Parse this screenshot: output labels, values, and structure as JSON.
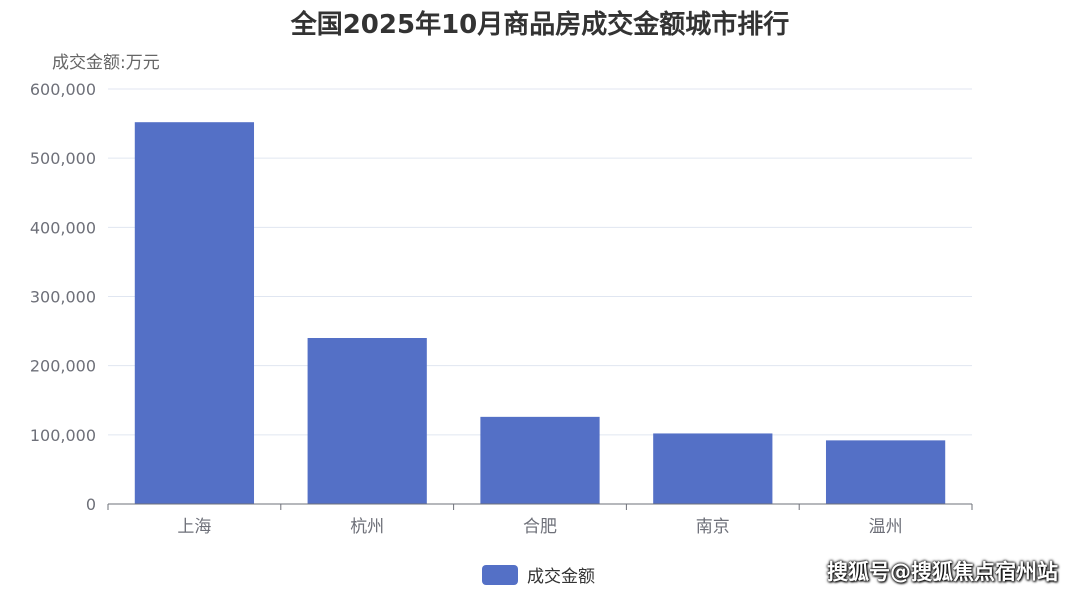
{
  "chart_data": {
    "type": "bar",
    "title": "全国2025年10月商品房成交金额城市排行",
    "unit_label": "成交金额:万元",
    "categories": [
      "上海",
      "杭州",
      "合肥",
      "南京",
      "温州"
    ],
    "series": [
      {
        "name": "成交金额",
        "values": [
          552000,
          240000,
          126000,
          102000,
          92000
        ],
        "color": "#5470c6"
      }
    ],
    "ylim": [
      0,
      600000
    ],
    "yticks": [
      "0",
      "100,000",
      "200,000",
      "300,000",
      "400,000",
      "500,000",
      "600,000"
    ],
    "grid": true,
    "legend_position": "bottom-center"
  },
  "watermark": "搜狐号@搜狐焦点宿州站"
}
